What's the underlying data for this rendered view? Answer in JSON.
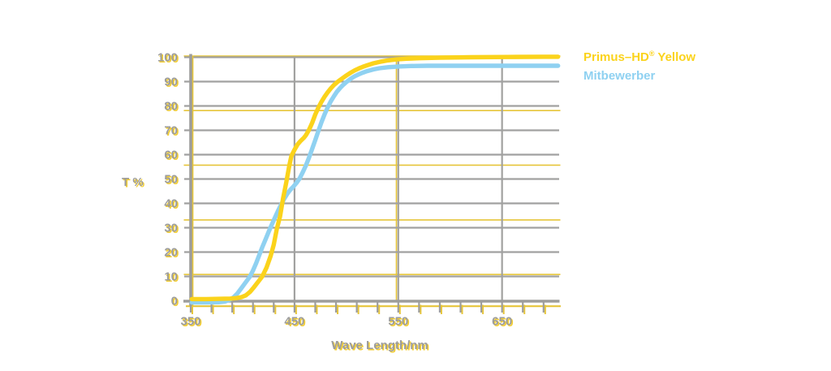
{
  "page": {
    "background": "#FFFFFF"
  },
  "legend": {
    "primus": {
      "pre": "Primus–HD",
      "sup": "®",
      "post": " Yellow",
      "color": "#FBD31B"
    },
    "competitor": {
      "label": "Mitbewerber",
      "color": "#8FD1F1"
    }
  },
  "chart_data": {
    "type": "line",
    "title": "",
    "xlabel": "Wave Length/nm",
    "ylabel": "T %",
    "xlim": [
      350,
      705
    ],
    "ylim": [
      0,
      100
    ],
    "x_major_ticks": [
      350,
      450,
      550,
      650
    ],
    "x_minor_tick_step": 20,
    "y_ticks": [
      0,
      10,
      20,
      30,
      40,
      50,
      60,
      70,
      80,
      90,
      100
    ],
    "grid": {
      "gray_horizontal_values": [
        10,
        20,
        30,
        40,
        50,
        60,
        70,
        80,
        90,
        100
      ],
      "gray_vertical_nm": [
        450,
        550,
        650
      ],
      "yellow_shadow_horizontal_values": [
        10.8,
        33.2,
        55.7,
        78.1,
        100.5
      ],
      "yellow_shadow_vertical_nm": [
        548.2
      ]
    },
    "colors": {
      "axis_gray": "#9D9D9C",
      "grid_gray": "#A1A1A0",
      "grid_shadow_yellow": "#E6C53A",
      "label_gray": "#9D9D9C",
      "label_shadow_yellow": "#F3CE33"
    },
    "legend_position": "top-right",
    "series": [
      {
        "name": "Primus–HD® Yellow",
        "color": "#FBD31B",
        "points": [
          [
            351,
            0.7
          ],
          [
            365,
            0.7
          ],
          [
            378,
            0.8
          ],
          [
            388,
            0.9
          ],
          [
            394,
            1.1
          ],
          [
            399,
            1.5
          ],
          [
            403,
            2.2
          ],
          [
            407,
            3.6
          ],
          [
            411,
            5.6
          ],
          [
            415,
            7.8
          ],
          [
            419,
            10
          ],
          [
            423,
            13.6
          ],
          [
            427,
            18.4
          ],
          [
            430,
            23
          ],
          [
            433,
            29.5
          ],
          [
            436,
            34.5
          ],
          [
            439,
            42
          ],
          [
            442,
            48.5
          ],
          [
            445,
            55.5
          ],
          [
            447,
            59.5
          ],
          [
            450,
            62
          ],
          [
            453,
            64.2
          ],
          [
            456,
            65.7
          ],
          [
            459,
            66.9
          ],
          [
            461,
            68
          ],
          [
            464,
            70.2
          ],
          [
            467,
            73
          ],
          [
            470,
            76.5
          ],
          [
            473,
            79.3
          ],
          [
            476,
            81.7
          ],
          [
            479,
            83.8
          ],
          [
            482,
            85.6
          ],
          [
            485,
            87.2
          ],
          [
            488,
            88.6
          ],
          [
            491,
            89.7
          ],
          [
            494,
            90.7
          ],
          [
            497,
            91.6
          ],
          [
            500,
            92.5
          ],
          [
            504,
            93.6
          ],
          [
            508,
            94.6
          ],
          [
            512,
            95.4
          ],
          [
            516,
            96.1
          ],
          [
            520,
            96.7
          ],
          [
            526,
            97.5
          ],
          [
            532,
            98.1
          ],
          [
            540,
            98.7
          ],
          [
            548,
            99.1
          ],
          [
            558,
            99.4
          ],
          [
            570,
            99.6
          ],
          [
            590,
            99.8
          ],
          [
            620,
            100
          ],
          [
            655,
            100.1
          ],
          [
            690,
            100.2
          ],
          [
            704,
            100.2
          ]
        ]
      },
      {
        "name": "Mitbewerber",
        "color": "#8FD1F1",
        "points": [
          [
            351,
            -0.7
          ],
          [
            365,
            -0.7
          ],
          [
            377,
            -0.6
          ],
          [
            383,
            -0.3
          ],
          [
            387,
            0.3
          ],
          [
            391,
            1.3
          ],
          [
            395,
            3
          ],
          [
            399,
            5.3
          ],
          [
            403,
            7.6
          ],
          [
            407,
            9.9
          ],
          [
            410,
            12.4
          ],
          [
            413,
            15.4
          ],
          [
            416,
            18.7
          ],
          [
            419,
            22
          ],
          [
            422,
            25.1
          ],
          [
            425,
            28.2
          ],
          [
            428,
            31.2
          ],
          [
            431,
            34
          ],
          [
            434,
            36.8
          ],
          [
            437,
            39.4
          ],
          [
            440,
            41.8
          ],
          [
            443,
            43.9
          ],
          [
            446,
            45.6
          ],
          [
            449,
            46.9
          ],
          [
            452,
            48.4
          ],
          [
            455,
            50.3
          ],
          [
            458,
            52.8
          ],
          [
            461,
            55.6
          ],
          [
            464,
            58.8
          ],
          [
            467,
            62.3
          ],
          [
            470,
            66
          ],
          [
            473,
            69.7
          ],
          [
            476,
            73.3
          ],
          [
            479,
            76.6
          ],
          [
            482,
            79.4
          ],
          [
            485,
            81.9
          ],
          [
            488,
            84
          ],
          [
            491,
            85.9
          ],
          [
            494,
            87.4
          ],
          [
            497,
            88.7
          ],
          [
            500,
            89.8
          ],
          [
            504,
            91.1
          ],
          [
            508,
            92.2
          ],
          [
            512,
            93
          ],
          [
            516,
            93.7
          ],
          [
            520,
            94.3
          ],
          [
            526,
            95
          ],
          [
            532,
            95.5
          ],
          [
            540,
            95.9
          ],
          [
            550,
            96.2
          ],
          [
            562,
            96.4
          ],
          [
            578,
            96.5
          ],
          [
            605,
            96.5
          ],
          [
            645,
            96.5
          ],
          [
            682,
            96.5
          ],
          [
            704,
            96.5
          ]
        ]
      }
    ]
  }
}
